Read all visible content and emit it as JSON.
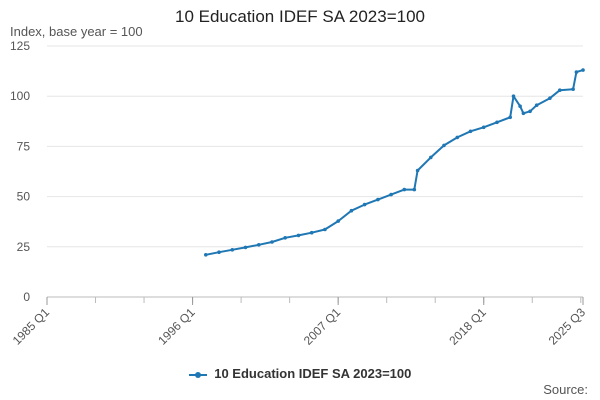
{
  "chart_data": {
    "type": "line",
    "title": "10 Education IDEF SA 2023=100",
    "ylabel": "Index, base year = 100",
    "xlabel": "",
    "ylim": [
      0,
      125
    ],
    "y_ticks": [
      0,
      25,
      50,
      75,
      100,
      125
    ],
    "x_tick_labels": [
      "1985 Q1",
      "1996 Q1",
      "2007 Q1",
      "2018 Q1",
      "2025 Q3"
    ],
    "legend": "10 Education IDEF SA 2023=100",
    "source_label": "Source:",
    "series": [
      {
        "name": "10 Education IDEF SA 2023=100",
        "color": "#1f77b4",
        "points": [
          [
            "1997 Q1",
            21.0
          ],
          [
            "1998 Q1",
            22.3
          ],
          [
            "1999 Q1",
            23.5
          ],
          [
            "2000 Q1",
            24.7
          ],
          [
            "2001 Q1",
            26.0
          ],
          [
            "2002 Q1",
            27.4
          ],
          [
            "2003 Q1",
            29.5
          ],
          [
            "2004 Q1",
            30.7
          ],
          [
            "2005 Q1",
            32.0
          ],
          [
            "2006 Q1",
            33.6
          ],
          [
            "2007 Q1",
            37.8
          ],
          [
            "2008 Q1",
            43.0
          ],
          [
            "2009 Q1",
            46.0
          ],
          [
            "2010 Q1",
            48.5
          ],
          [
            "2011 Q1",
            51.0
          ],
          [
            "2012 Q1",
            53.5
          ],
          [
            "2012 Q4",
            53.5
          ],
          [
            "2013 Q1",
            63.0
          ],
          [
            "2014 Q1",
            69.5
          ],
          [
            "2015 Q1",
            75.5
          ],
          [
            "2016 Q1",
            79.5
          ],
          [
            "2017 Q1",
            82.5
          ],
          [
            "2018 Q1",
            84.5
          ],
          [
            "2019 Q1",
            87.0
          ],
          [
            "2020 Q1",
            89.5
          ],
          [
            "2020 Q2",
            100.0
          ],
          [
            "2020 Q4",
            95.0
          ],
          [
            "2021 Q1",
            91.5
          ],
          [
            "2021 Q3",
            92.5
          ],
          [
            "2022 Q1",
            95.5
          ],
          [
            "2023 Q1",
            99.0
          ],
          [
            "2023 Q4",
            103.0
          ],
          [
            "2024 Q4",
            103.5
          ],
          [
            "2025 Q1",
            112.0
          ],
          [
            "2025 Q3",
            113.0
          ]
        ]
      }
    ]
  }
}
